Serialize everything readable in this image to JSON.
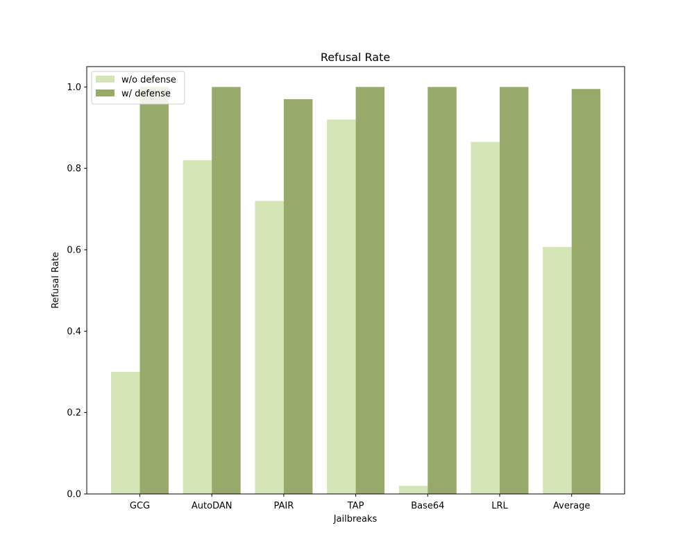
{
  "chart_data": {
    "type": "bar",
    "title": "Refusal Rate",
    "xlabel": "Jailbreaks",
    "ylabel": "Refusal Rate",
    "categories": [
      "GCG",
      "AutoDAN",
      "PAIR",
      "TAP",
      "Base64",
      "LRL",
      "Average"
    ],
    "series": [
      {
        "name": "w/o defense",
        "color": "#d6e3b7",
        "values": [
          0.3,
          0.82,
          0.72,
          0.92,
          0.02,
          0.865,
          0.607
        ]
      },
      {
        "name": "w/ defense",
        "color": "#98a96a",
        "values": [
          1.0,
          1.0,
          0.97,
          1.0,
          1.0,
          1.0,
          0.995
        ]
      }
    ],
    "ylim": [
      0,
      1.05
    ],
    "yticks": [
      "0.0",
      "0.2",
      "0.4",
      "0.6",
      "0.8",
      "1.0"
    ],
    "grid": false,
    "legend_position": "top-left"
  }
}
